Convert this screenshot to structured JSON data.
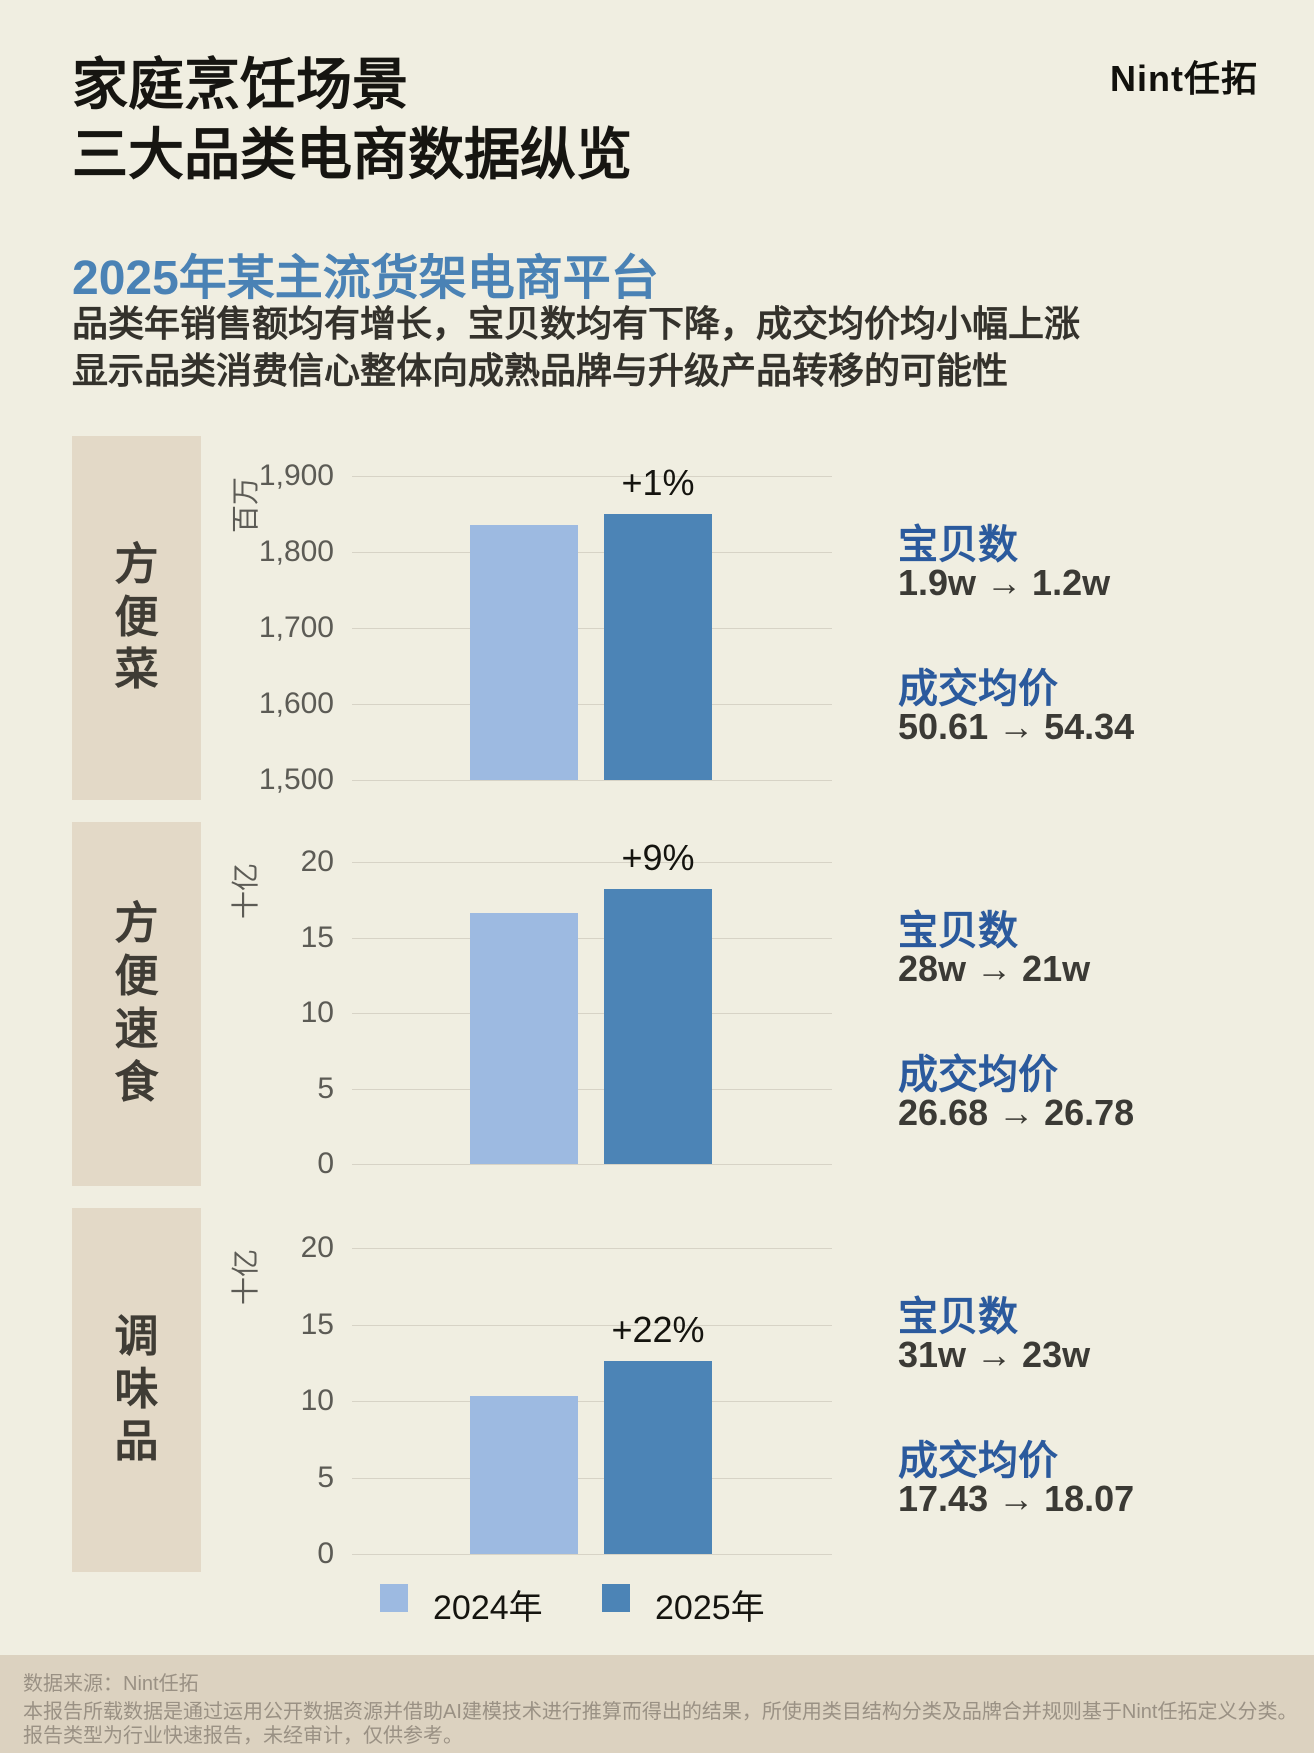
{
  "page": {
    "logo": "Nint任拓",
    "title_line1": "家庭烹饪场景",
    "title_line2": "三大品类电商数据纵览",
    "heading": "2025年某主流货架电商平台",
    "subtitle_line1": "品类年销售额均有增长，宝贝数均有下降，成交均价均小幅上涨",
    "subtitle_line2": "显示品类消费信心整体向成熟品牌与升级产品转移的可能性"
  },
  "colors": {
    "background": "#f0eee1",
    "category_box": "#e3d9c7",
    "footer_background": "#dcd2c0",
    "bar_2024": "#9dbae1",
    "bar_2025": "#4c84b6",
    "heading_blue": "#4a82b5",
    "stat_label_blue": "#2b5a9d",
    "gridline": "#d7d3c6"
  },
  "legend": {
    "items": [
      {
        "label": "2024年",
        "color": "#9dbae1"
      },
      {
        "label": "2025年",
        "color": "#4c84b6"
      }
    ]
  },
  "chart_data": [
    {
      "type": "bar",
      "category": "方便菜",
      "title": "方便菜 年销售额",
      "ylabel": "百万",
      "unit": "百万",
      "categories": [
        "2024年",
        "2025年"
      ],
      "values": [
        1836,
        1850
      ],
      "growth_label": "+1%",
      "ylim": [
        1500,
        1900
      ],
      "yticks": [
        1500,
        1600,
        1700,
        1800,
        1900
      ],
      "grid": true,
      "stats": [
        {
          "label": "宝贝数",
          "value": "1.9w → 1.2w"
        },
        {
          "label": "成交均价",
          "value": "50.61 → 54.34"
        }
      ]
    },
    {
      "type": "bar",
      "category": "方便速食",
      "title": "方便速食 年销售额",
      "ylabel": "十亿",
      "unit": "十亿",
      "categories": [
        "2024年",
        "2025年"
      ],
      "values": [
        16.6,
        18.2
      ],
      "growth_label": "+9%",
      "ylim": [
        0,
        20
      ],
      "yticks": [
        0,
        5,
        10,
        15,
        20
      ],
      "grid": true,
      "stats": [
        {
          "label": "宝贝数",
          "value": "28w → 21w"
        },
        {
          "label": "成交均价",
          "value": "26.68 → 26.78"
        }
      ]
    },
    {
      "type": "bar",
      "category": "调味品",
      "title": "调味品 年销售额",
      "ylabel": "十亿",
      "unit": "十亿",
      "categories": [
        "2024年",
        "2025年"
      ],
      "values": [
        10.3,
        12.6
      ],
      "growth_label": "+22%",
      "ylim": [
        0,
        20
      ],
      "yticks": [
        0,
        5,
        10,
        15,
        20
      ],
      "grid": true,
      "stats": [
        {
          "label": "宝贝数",
          "value": "31w → 23w"
        },
        {
          "label": "成交均价",
          "value": "17.43 → 18.07"
        }
      ]
    }
  ],
  "footer": {
    "line1": "数据来源：Nint任拓",
    "line2": "本报告所载数据是通过运用公开数据资源并借助AI建模技术进行推算而得出的结果，所使用类目结构分类及品牌合并规则基于Nint任拓定义分类。",
    "line3": "报告类型为行业快速报告，未经审计，仅供参考。"
  }
}
